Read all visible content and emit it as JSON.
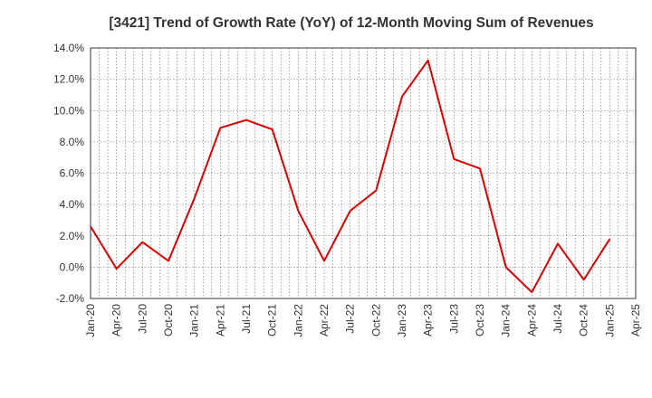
{
  "chart_data": {
    "type": "line",
    "title": "[3421]  Trend of Growth Rate (YoY) of 12-Month Moving Sum of Revenues",
    "xlabel": "",
    "ylabel": "",
    "ylim": [
      -2.0,
      14.0
    ],
    "y_ticks": [
      "14.0%",
      "12.0%",
      "10.0%",
      "8.0%",
      "6.0%",
      "4.0%",
      "2.0%",
      "0.0%",
      "-2.0%"
    ],
    "y_tick_values": [
      14,
      12,
      10,
      8,
      6,
      4,
      2,
      0,
      -2
    ],
    "x_ticks": [
      "Jan-20",
      "Apr-20",
      "Jul-20",
      "Oct-20",
      "Jan-21",
      "Apr-21",
      "Jul-21",
      "Oct-21",
      "Jan-22",
      "Apr-22",
      "Jul-22",
      "Oct-22",
      "Jan-23",
      "Apr-23",
      "Jul-23",
      "Oct-23",
      "Jan-24",
      "Apr-24",
      "Jul-24",
      "Oct-24",
      "Jan-25",
      "Apr-25"
    ],
    "grid": true,
    "series": [
      {
        "color": "#e00000",
        "x": [
          "Jan-20",
          "Apr-20",
          "Jul-20",
          "Oct-20",
          "Jan-21",
          "Apr-21",
          "Jul-21",
          "Oct-21",
          "Jan-22",
          "Apr-22",
          "Jul-22",
          "Oct-22",
          "Jan-23",
          "Apr-23",
          "Jul-23",
          "Oct-23",
          "Jan-24",
          "Apr-24",
          "Jul-24",
          "Oct-24",
          "Jan-25"
        ],
        "values": [
          2.6,
          -0.1,
          1.6,
          0.4,
          4.4,
          8.9,
          9.4,
          8.8,
          3.6,
          0.4,
          3.6,
          4.9,
          10.9,
          13.2,
          6.9,
          6.3,
          0.0,
          -1.6,
          1.5,
          -0.8,
          1.8
        ]
      }
    ]
  }
}
